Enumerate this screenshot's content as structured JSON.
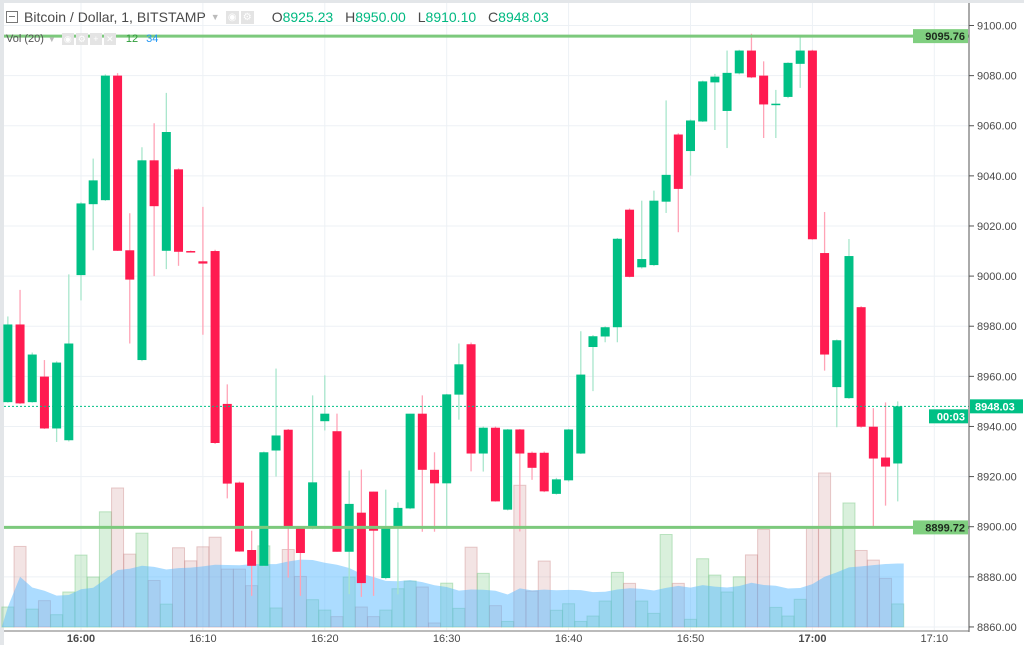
{
  "header": {
    "symbol": "Bitcoin / Dollar, 1, BITSTAMP",
    "open_label": "O",
    "open": "8925.23",
    "high_label": "H",
    "high": "8950.00",
    "low_label": "L",
    "low": "8910.10",
    "close_label": "C",
    "close": "8948.03",
    "icons": [
      "collapse-icon",
      "caret-down-icon",
      "eye-icon",
      "gear-icon"
    ]
  },
  "volume_legend": {
    "label": "Vol (20)",
    "volume": "12",
    "ma": "34",
    "icons": [
      "caret-down-icon",
      "eye-icon",
      "gear-icon",
      "plus-icon",
      "close-icon"
    ]
  },
  "colors": {
    "up": "#00c085",
    "down": "#ff1b50",
    "up_wick": "#a8e6cc",
    "down_wick": "#ffa3b6",
    "vol_up": "rgba(120,200,130,0.28)",
    "vol_down": "rgba(200,130,130,0.22)",
    "vol_ma": "rgba(90,185,255,0.5)",
    "hline": "#7cc97c",
    "last_price": "#00c085"
  },
  "chart_data": {
    "type": "candlestick",
    "ylim": [
      8860,
      9100
    ],
    "y_ticks": [
      "9100.00",
      "9080.00",
      "9060.00",
      "9040.00",
      "9020.00",
      "9000.00",
      "8980.00",
      "8960.00",
      "8940.00",
      "8920.00",
      "8900.00",
      "8880.00",
      "8860.00"
    ],
    "x_ticks": [
      "16:00",
      "16:10",
      "16:20",
      "16:30",
      "16:40",
      "16:50",
      "17:00",
      "17:10"
    ],
    "grid": true,
    "horizontal_lines": [
      {
        "value": 9095.76,
        "label": "9095.76"
      },
      {
        "value": 8899.72,
        "label": "8899.72"
      }
    ],
    "last_price": {
      "value": 8948.03,
      "label": "8948.03",
      "countdown": "00:03"
    },
    "volume_ma_period": 20,
    "columns": [
      "time",
      "open",
      "high",
      "low",
      "close",
      "volume"
    ],
    "candles": [
      [
        "15:54",
        8949.7,
        8983.9,
        8949.5,
        8980.7,
        10.4
      ],
      [
        "15:55",
        8980.7,
        8994.5,
        8949.0,
        8949.2,
        41.9
      ],
      [
        "15:56",
        8949.7,
        8969.5,
        8949.5,
        8968.7,
        9.3
      ],
      [
        "15:57",
        8959.9,
        8966.5,
        8939.0,
        8939.2,
        13.7
      ],
      [
        "15:58",
        8939.2,
        8966.0,
        8933.8,
        8965.5,
        6.4
      ],
      [
        "15:59",
        8934.5,
        9000.7,
        8934.0,
        8973.1,
        18.2
      ],
      [
        "16:00",
        9000.4,
        9029.5,
        8990.3,
        9029.0,
        37.4
      ],
      [
        "16:01",
        9028.7,
        9046.9,
        9010.3,
        9038.2,
        26.0
      ],
      [
        "16:02",
        9030.3,
        9080.5,
        9030.0,
        9080.0,
        59.9
      ],
      [
        "16:03",
        9080.0,
        9081.0,
        9010.0,
        9010.1,
        72.3
      ],
      [
        "16:04",
        9010.3,
        9025.1,
        8973.1,
        8998.6,
        37.9
      ],
      [
        "16:05",
        8966.5,
        9051.4,
        8966.0,
        9046.2,
        48.8
      ],
      [
        "16:06",
        9046.2,
        9061.0,
        9000.0,
        9027.9,
        24.2
      ],
      [
        "16:07",
        9010.1,
        9073.1,
        9002.8,
        9057.5,
        11.9
      ],
      [
        "16:08",
        9042.6,
        9043.0,
        9004.1,
        9009.7,
        41.2
      ],
      [
        "16:09",
        9010.0,
        9010.2,
        9009.7,
        9009.9,
        34.4
      ],
      [
        "16:10",
        9005.9,
        9027.6,
        8976.6,
        9005.0,
        41.7
      ],
      [
        "16:11",
        9010.0,
        9010.5,
        8933.0,
        8933.4,
        46.7
      ],
      [
        "16:12",
        8949.0,
        8956.8,
        8911.3,
        8917.2,
        30.1
      ],
      [
        "16:13",
        8917.6,
        8918.0,
        8890.0,
        8890.1,
        30.1
      ],
      [
        "16:14",
        8890.7,
        8898.4,
        8872.4,
        8884.4,
        21.5
      ],
      [
        "16:15",
        8884.4,
        8930.0,
        8884.0,
        8929.7,
        42.2
      ],
      [
        "16:16",
        8930.4,
        8963.1,
        8920.0,
        8936.4,
        9.9
      ],
      [
        "16:17",
        8938.7,
        8939.0,
        8879.7,
        8899.5,
        40.3
      ],
      [
        "16:18",
        8899.5,
        8900.0,
        8872.4,
        8889.5,
        26.3
      ],
      [
        "16:19",
        8899.5,
        8952.4,
        8899.0,
        8917.7,
        14.2
      ],
      [
        "16:20",
        8942.1,
        8960.4,
        8938.4,
        8945.1,
        8.8
      ],
      [
        "16:21",
        8938.1,
        8945.1,
        8890.0,
        8890.0,
        5.4
      ],
      [
        "16:22",
        8890.0,
        8922.4,
        8873.1,
        8909.1,
        26.0
      ],
      [
        "16:23",
        8905.6,
        8922.8,
        8872.0,
        8877.5,
        10.4
      ],
      [
        "16:24",
        8914.0,
        8914.0,
        8872.4,
        8898.4,
        5.4
      ],
      [
        "16:25",
        8879.5,
        8914.8,
        8879.0,
        8899.7,
        8.8
      ],
      [
        "16:26",
        8899.5,
        8909.7,
        8873.0,
        8907.5,
        19.9
      ],
      [
        "16:27",
        8907.3,
        8945.0,
        8907.0,
        8945.1,
        23.9
      ],
      [
        "16:28",
        8945.1,
        8952.4,
        8898.0,
        8922.7,
        20.8
      ],
      [
        "16:29",
        8922.7,
        8929.7,
        8898.0,
        8917.3,
        2.1
      ],
      [
        "16:30",
        8917.3,
        8953.0,
        8899.7,
        8952.8,
        22.8
      ],
      [
        "16:31",
        8952.7,
        8973.1,
        8942.7,
        8964.8,
        9.7
      ],
      [
        "16:32",
        8972.8,
        8973.5,
        8922.1,
        8929.2,
        41.5
      ],
      [
        "16:33",
        8929.2,
        8940.0,
        8922.0,
        8939.5,
        27.9
      ],
      [
        "16:34",
        8939.5,
        8940.0,
        8910.0,
        8910.1,
        11.1
      ],
      [
        "16:35",
        8906.8,
        8939.0,
        8906.5,
        8938.8,
        2.9
      ],
      [
        "16:36",
        8938.8,
        8939.0,
        8898.1,
        8929.2,
        73.7
      ],
      [
        "16:37",
        8929.5,
        8930.0,
        8918.7,
        8923.5,
        18.7
      ],
      [
        "16:38",
        8929.5,
        8930.0,
        8913.8,
        8914.1,
        34.3
      ],
      [
        "16:39",
        8913.1,
        8919.5,
        8912.8,
        8918.9,
        8.7
      ],
      [
        "16:40",
        8918.5,
        8939.0,
        8918.0,
        8938.8,
        12.1
      ],
      [
        "16:41",
        8929.2,
        8978.0,
        8929.0,
        8960.7,
        2.9
      ],
      [
        "16:42",
        8971.7,
        8976.5,
        8954.1,
        8976.0,
        5.7
      ],
      [
        "16:43",
        8975.9,
        8980.0,
        8973.6,
        8979.6,
        13.5
      ],
      [
        "16:44",
        8979.6,
        9015.2,
        8973.6,
        9014.9,
        28.4
      ],
      [
        "16:45",
        9026.5,
        9027.0,
        8999.5,
        8999.7,
        22.7
      ],
      [
        "16:46",
        9003.5,
        9030.1,
        9003.0,
        9006.8,
        13.5
      ],
      [
        "16:47",
        9004.4,
        9034.1,
        9004.0,
        9030.1,
        7.1
      ],
      [
        "16:48",
        9029.7,
        9070.1,
        9025.2,
        9040.4,
        48.1
      ],
      [
        "16:49",
        9056.5,
        9057.0,
        9017.5,
        9034.8,
        22.7
      ],
      [
        "16:50",
        9049.9,
        9062.5,
        9040.1,
        9062.1,
        4.0
      ],
      [
        "16:51",
        9061.7,
        9078.0,
        9061.5,
        9077.7,
        35.5
      ],
      [
        "16:52",
        9077.3,
        9080.7,
        9058.3,
        9079.6,
        27.0
      ],
      [
        "16:53",
        9065.9,
        9090.0,
        9051.1,
        9081.1,
        18.2
      ],
      [
        "16:54",
        9080.9,
        9090.3,
        9080.5,
        9090.0,
        26.1
      ],
      [
        "16:55",
        9090.0,
        9096.7,
        9079.0,
        9079.3,
        37.5
      ],
      [
        "16:56",
        9080.0,
        9085.7,
        9055.1,
        9068.5,
        50.7
      ],
      [
        "16:57",
        9068.8,
        9074.3,
        9055.1,
        9068.8,
        10.2
      ],
      [
        "16:58",
        9071.5,
        9085.3,
        9071.0,
        9085.1,
        5.7
      ],
      [
        "16:59",
        9084.7,
        9095.6,
        9075.1,
        9090.0,
        14.4
      ],
      [
        "17:00",
        9090.0,
        9090.3,
        9014.5,
        9014.7,
        52.1
      ],
      [
        "17:01",
        9009.2,
        9025.6,
        8962.3,
        8968.7,
        80.1
      ],
      [
        "17:02",
        8955.7,
        8974.7,
        8939.7,
        8974.4,
        51.2
      ],
      [
        "17:03",
        8951.3,
        9014.8,
        8951.0,
        9008.0,
        64.5
      ],
      [
        "17:04",
        8987.6,
        8988.0,
        8939.5,
        8939.9,
        39.8
      ],
      [
        "17:05",
        8939.9,
        8947.3,
        8899.3,
        8927.2,
        34.8
      ],
      [
        "17:06",
        8927.6,
        8949.6,
        8908.4,
        8924.0,
        25.3
      ],
      [
        "17:07",
        8925.23,
        8950.0,
        8910.1,
        8948.03,
        12
      ]
    ]
  }
}
